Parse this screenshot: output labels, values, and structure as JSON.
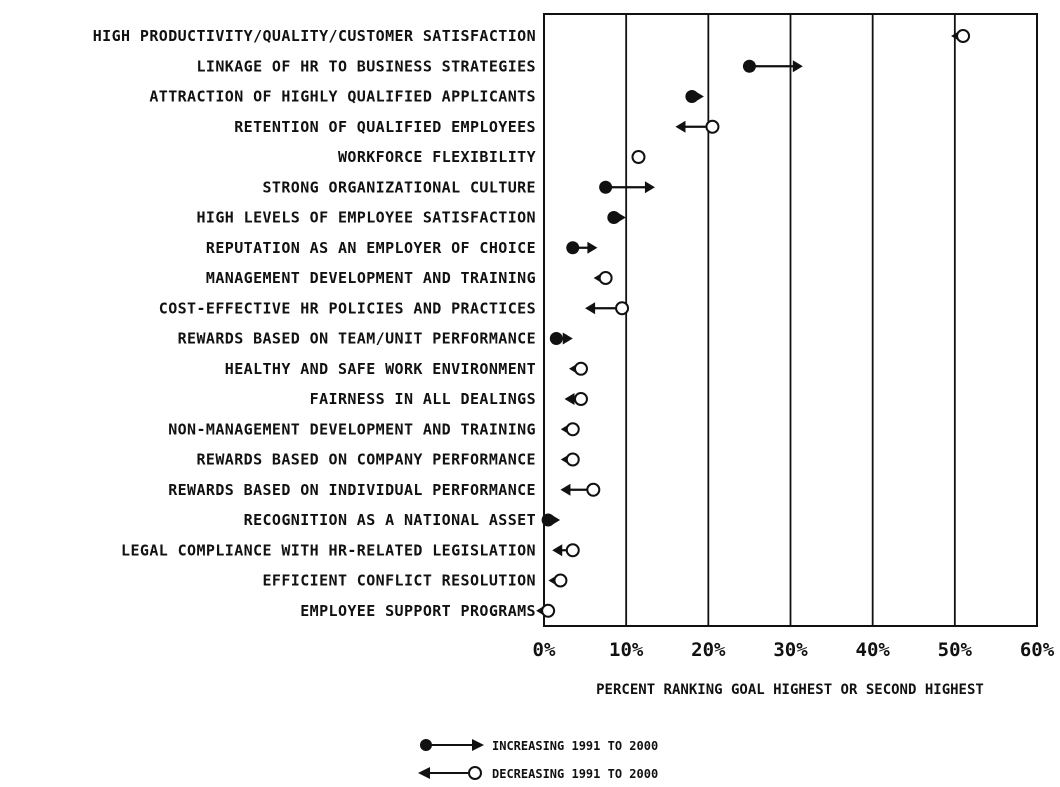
{
  "chart_data": {
    "type": "scatter",
    "xlabel": "PERCENT RANKING GOAL HIGHEST OR SECOND HIGHEST",
    "xlim": [
      0,
      60
    ],
    "xticks": [
      0,
      10,
      20,
      30,
      40,
      50,
      60
    ],
    "tick_labels": [
      "0%",
      "10%",
      "20%",
      "30%",
      "40%",
      "50%",
      "60%"
    ],
    "grid": "vertical lines at 10% intervals",
    "legend": [
      {
        "marker": "filled-circle",
        "direction": "increasing",
        "label": "INCREASING 1991 TO 2000"
      },
      {
        "marker": "open-circle",
        "direction": "decreasing",
        "label": "DECREASING 1991 TO 2000"
      }
    ],
    "legend_position": "bottom-center",
    "items": [
      {
        "label": "HIGH PRODUCTIVITY/QUALITY/CUSTOMER SATISFACTION",
        "v1991": 51,
        "v2000": 49.5
      },
      {
        "label": "LINKAGE OF HR TO BUSINESS STRATEGIES",
        "v1991": 25,
        "v2000": 31.5
      },
      {
        "label": "ATTRACTION OF HIGHLY QUALIFIED APPLICANTS",
        "v1991": 18,
        "v2000": 19.5
      },
      {
        "label": "RETENTION OF QUALIFIED EMPLOYEES",
        "v1991": 20.5,
        "v2000": 16
      },
      {
        "label": "WORKFORCE FLEXIBILITY",
        "v1991": 11.5,
        "v2000": 11.5
      },
      {
        "label": "STRONG ORGANIZATIONAL CULTURE",
        "v1991": 7.5,
        "v2000": 13.5
      },
      {
        "label": "HIGH LEVELS OF EMPLOYEE SATISFACTION",
        "v1991": 8.5,
        "v2000": 10
      },
      {
        "label": "REPUTATION AS AN EMPLOYER OF CHOICE",
        "v1991": 3.5,
        "v2000": 6.5
      },
      {
        "label": "MANAGEMENT DEVELOPMENT AND TRAINING",
        "v1991": 7.5,
        "v2000": 6
      },
      {
        "label": "COST-EFFECTIVE HR POLICIES AND PRACTICES",
        "v1991": 9.5,
        "v2000": 5
      },
      {
        "label": "REWARDS BASED ON TEAM/UNIT PERFORMANCE",
        "v1991": 1.5,
        "v2000": 3.5
      },
      {
        "label": "HEALTHY AND SAFE WORK ENVIRONMENT",
        "v1991": 4.5,
        "v2000": 3.5
      },
      {
        "label": "FAIRNESS IN ALL DEALINGS",
        "v1991": 4.5,
        "v2000": 2.5
      },
      {
        "label": "NON-MANAGEMENT DEVELOPMENT AND TRAINING",
        "v1991": 3.5,
        "v2000": 2.5
      },
      {
        "label": "REWARDS BASED ON COMPANY PERFORMANCE",
        "v1991": 3.5,
        "v2000": 2
      },
      {
        "label": "REWARDS BASED ON INDIVIDUAL PERFORMANCE",
        "v1991": 6,
        "v2000": 2
      },
      {
        "label": "RECOGNITION AS A NATIONAL ASSET",
        "v1991": 0.5,
        "v2000": 1
      },
      {
        "label": "LEGAL COMPLIANCE WITH HR-RELATED LEGISLATION",
        "v1991": 3.5,
        "v2000": 1
      },
      {
        "label": "EFFICIENT CONFLICT RESOLUTION",
        "v1991": 2,
        "v2000": 1
      },
      {
        "label": "EMPLOYEE SUPPORT PROGRAMS",
        "v1991": 0.5,
        "v2000": 0
      }
    ]
  }
}
